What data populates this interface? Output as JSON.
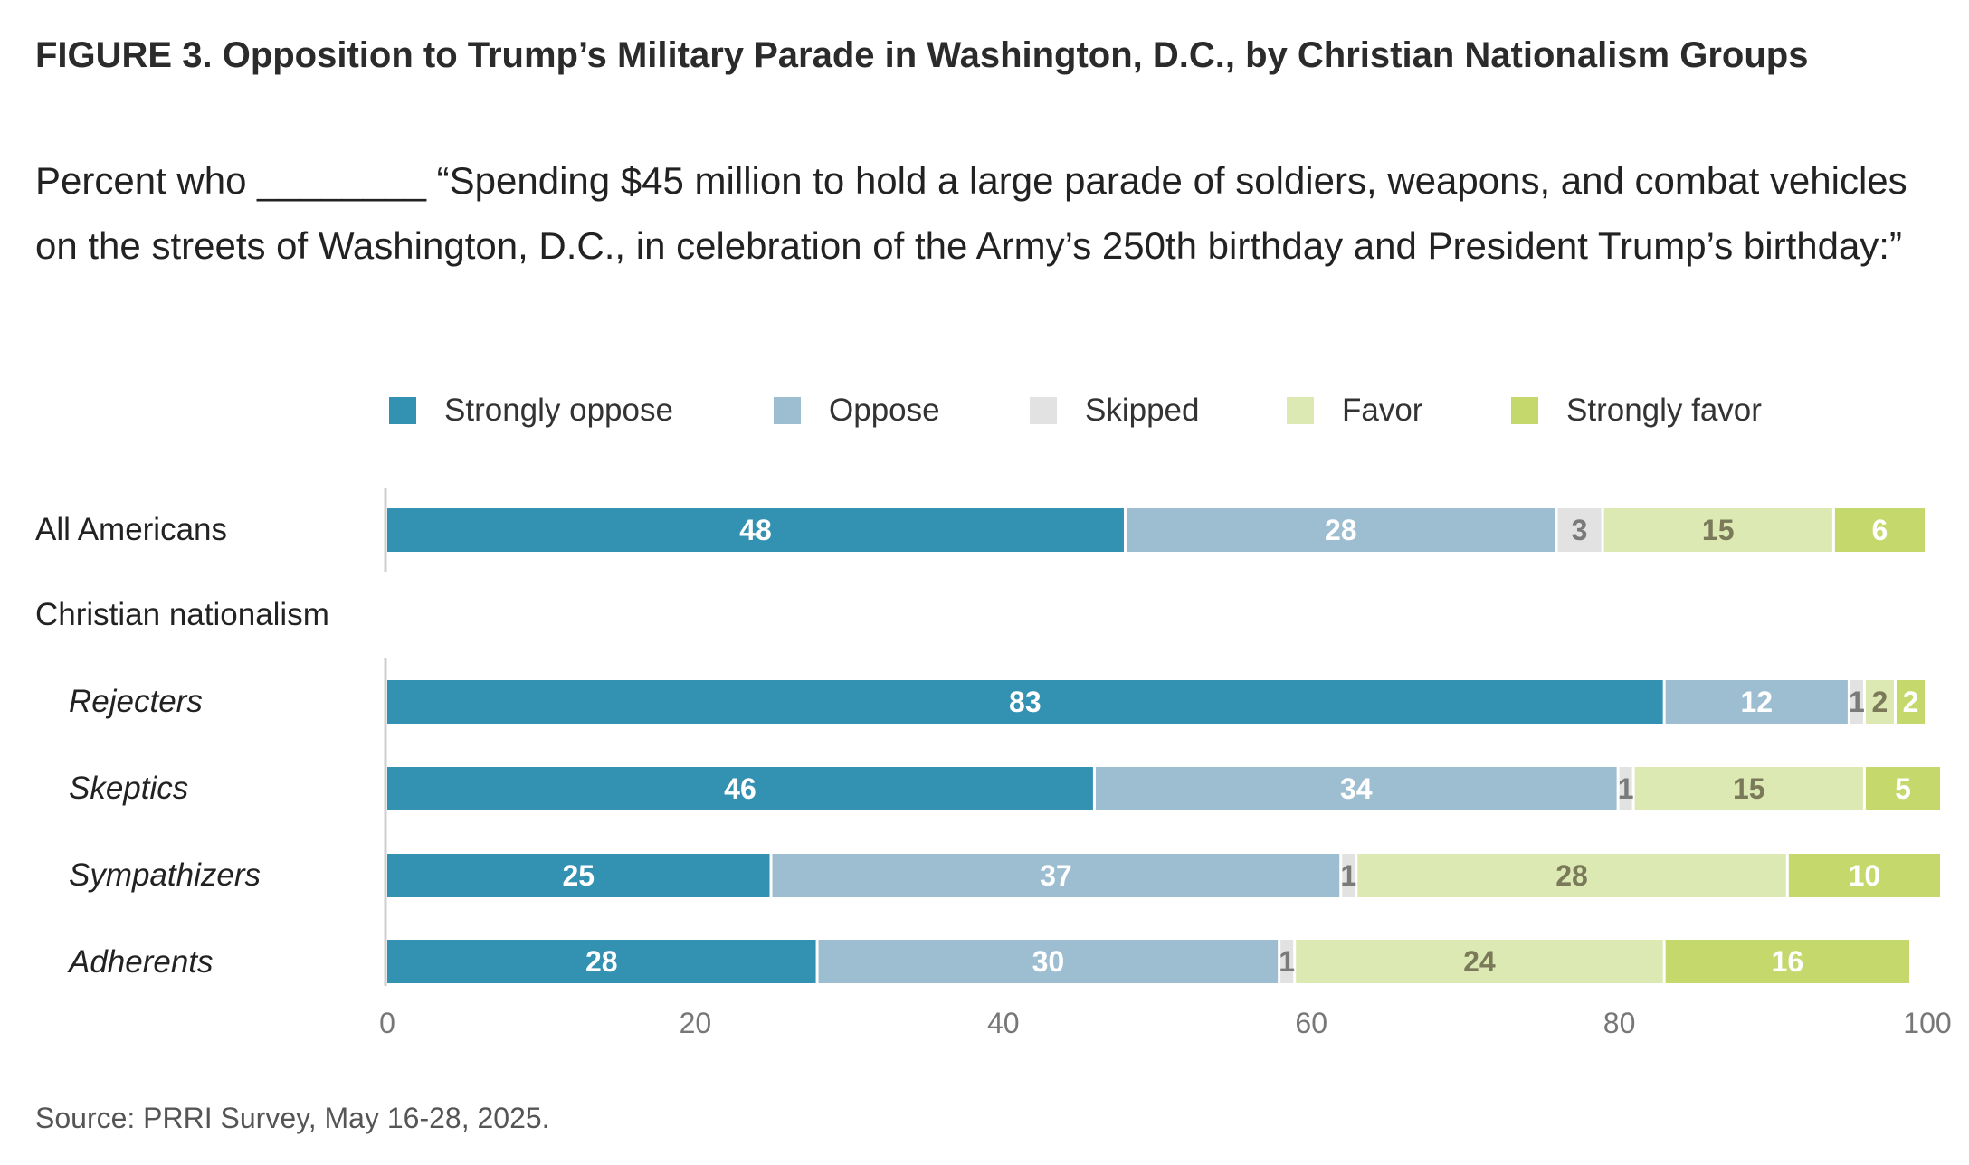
{
  "header": {
    "title": "FIGURE 3.  Opposition to Trump’s Military Parade in Washington, D.C., by Christian Nationalism Groups",
    "subtitle": "Percent who ________ “Spending $45 million to hold a large parade of soldiers, weapons, and combat vehicles on the streets of Washington, D.C., in celebration of the Army’s 250th birthday and President Trump’s birthday:”"
  },
  "legend": {
    "items": [
      {
        "label": "Strongly oppose",
        "color": "#3391b1"
      },
      {
        "label": "Oppose",
        "color": "#9dbdd1"
      },
      {
        "label": "Skipped",
        "color": "#e2e2e2"
      },
      {
        "label": "Favor",
        "color": "#dde9b2"
      },
      {
        "label": "Strongly favor",
        "color": "#c4d86c"
      }
    ]
  },
  "rows": {
    "all_americans": "All Americans",
    "group_heading": "Christian nationalism",
    "rejecters": "Rejecters",
    "skeptics": "Skeptics",
    "sympathizers": "Sympathizers",
    "adherents": "Adherents"
  },
  "source": "Source: PRRI Survey, May 16-28, 2025.",
  "chart_data": {
    "type": "bar",
    "orientation": "horizontal",
    "stacked": true,
    "categories": [
      "All Americans",
      "Rejecters",
      "Skeptics",
      "Sympathizers",
      "Adherents"
    ],
    "series": [
      {
        "name": "Strongly oppose",
        "values": [
          48,
          83,
          46,
          25,
          28
        ],
        "color": "#3391b1",
        "label_color": "#ffffff"
      },
      {
        "name": "Oppose",
        "values": [
          28,
          12,
          34,
          37,
          30
        ],
        "color": "#9dbdd1",
        "label_color": "#ffffff"
      },
      {
        "name": "Skipped",
        "values": [
          3,
          1,
          1,
          1,
          1
        ],
        "color": "#e2e2e2",
        "label_color": "#7a7a7a"
      },
      {
        "name": "Favor",
        "values": [
          15,
          2,
          15,
          28,
          24
        ],
        "color": "#dde9b2",
        "label_color": "#7a7a5a"
      },
      {
        "name": "Strongly favor",
        "values": [
          6,
          2,
          5,
          10,
          16
        ],
        "color": "#c4d86c",
        "label_color": "#ffffff"
      }
    ],
    "xlim": [
      0,
      100
    ],
    "xticks": [
      0,
      20,
      40,
      60,
      80,
      100
    ],
    "grid": false,
    "legend_position": "top"
  }
}
